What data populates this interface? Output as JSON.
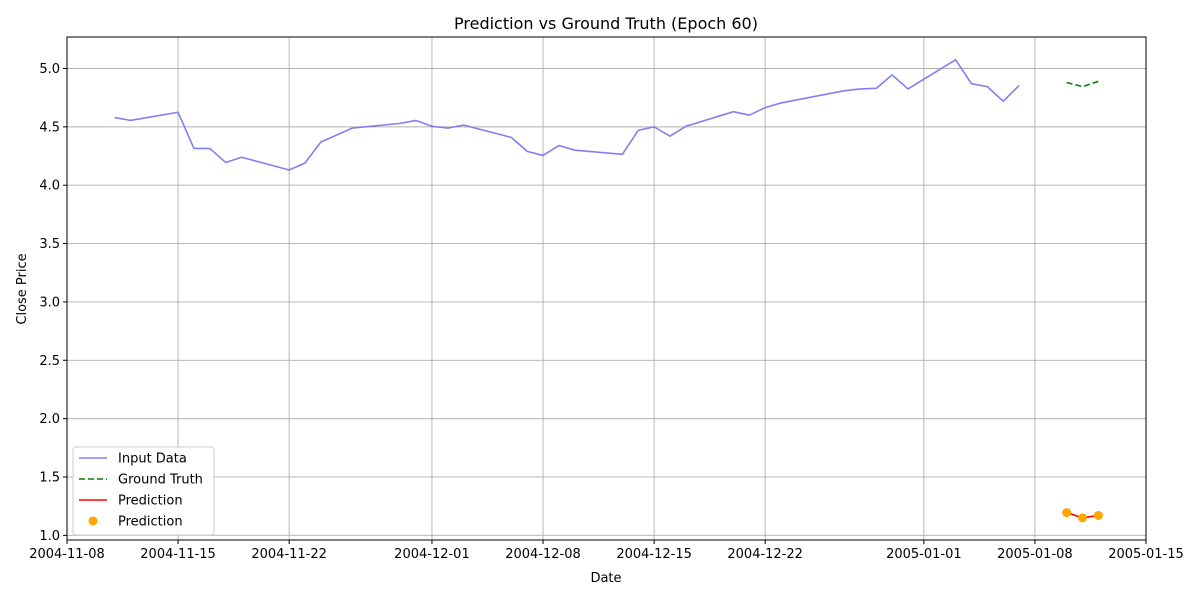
{
  "chart_data": {
    "type": "line",
    "title": "Prediction vs Ground Truth (Epoch 60)",
    "xlabel": "Date",
    "ylabel": "Close Price",
    "xlim": [
      "2004-11-08",
      "2005-01-15"
    ],
    "ylim": [
      0.96,
      5.27
    ],
    "x_ticks": [
      "2004-11-08",
      "2004-11-15",
      "2004-11-22",
      "2004-12-01",
      "2004-12-08",
      "2004-12-15",
      "2004-12-22",
      "2005-01-01",
      "2005-01-08",
      "2005-01-15"
    ],
    "y_ticks": [
      "1.0",
      "1.5",
      "2.0",
      "2.5",
      "3.0",
      "3.5",
      "4.0",
      "4.5",
      "5.0"
    ],
    "grid": true,
    "legend": "lower-left",
    "series": [
      {
        "name": "Input Data",
        "style": "line",
        "color": "#8080f0",
        "points": [
          [
            "2004-11-11",
            4.58
          ],
          [
            "2004-11-12",
            4.555
          ],
          [
            "2004-11-15",
            4.625
          ],
          [
            "2004-11-16",
            4.315
          ],
          [
            "2004-11-17",
            4.315
          ],
          [
            "2004-11-18",
            4.195
          ],
          [
            "2004-11-19",
            4.24
          ],
          [
            "2004-11-22",
            4.13
          ],
          [
            "2004-11-23",
            4.19
          ],
          [
            "2004-11-24",
            4.37
          ],
          [
            "2004-11-26",
            4.49
          ],
          [
            "2004-11-29",
            4.53
          ],
          [
            "2004-11-30",
            4.555
          ],
          [
            "2004-12-01",
            4.505
          ],
          [
            "2004-12-02",
            4.49
          ],
          [
            "2004-12-03",
            4.515
          ],
          [
            "2004-12-06",
            4.41
          ],
          [
            "2004-12-07",
            4.29
          ],
          [
            "2004-12-08",
            4.255
          ],
          [
            "2004-12-09",
            4.34
          ],
          [
            "2004-12-10",
            4.3
          ],
          [
            "2004-12-13",
            4.265
          ],
          [
            "2004-12-14",
            4.47
          ],
          [
            "2004-12-15",
            4.5
          ],
          [
            "2004-12-16",
            4.42
          ],
          [
            "2004-12-17",
            4.505
          ],
          [
            "2004-12-20",
            4.63
          ],
          [
            "2004-12-21",
            4.6
          ],
          [
            "2004-12-22",
            4.665
          ],
          [
            "2004-12-23",
            4.705
          ],
          [
            "2004-12-27",
            4.81
          ],
          [
            "2004-12-28",
            4.825
          ],
          [
            "2004-12-29",
            4.83
          ],
          [
            "2004-12-30",
            4.945
          ],
          [
            "2004-12-31",
            4.825
          ],
          [
            "2005-01-03",
            5.075
          ],
          [
            "2005-01-04",
            4.87
          ],
          [
            "2005-01-05",
            4.845
          ],
          [
            "2005-01-06",
            4.72
          ],
          [
            "2005-01-07",
            4.855
          ]
        ]
      },
      {
        "name": "Ground Truth",
        "style": "dashed",
        "color": "#008000",
        "points": [
          [
            "2005-01-10",
            4.88
          ],
          [
            "2005-01-11",
            4.845
          ],
          [
            "2005-01-12",
            4.89
          ]
        ]
      },
      {
        "name": "Prediction",
        "style": "line",
        "color": "#ff0000",
        "points": [
          [
            "2005-01-10",
            1.195
          ],
          [
            "2005-01-11",
            1.15
          ],
          [
            "2005-01-12",
            1.17
          ]
        ]
      },
      {
        "name": "Prediction",
        "style": "scatter",
        "color": "#ffa500",
        "points": [
          [
            "2005-01-10",
            1.195
          ],
          [
            "2005-01-11",
            1.15
          ],
          [
            "2005-01-12",
            1.17
          ]
        ]
      }
    ]
  }
}
